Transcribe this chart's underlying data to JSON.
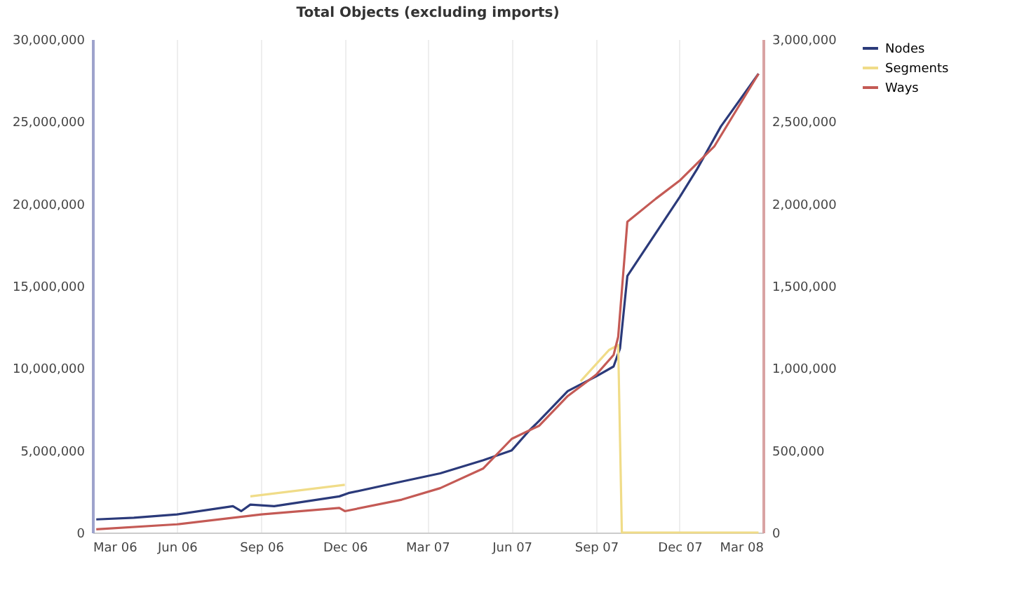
{
  "chart_data": {
    "type": "line",
    "title": "Total Objects (excluding imports)",
    "xlim": [
      "2006-03-01",
      "2008-03-01"
    ],
    "xticks": [
      {
        "value": "2006-03-01",
        "label": "Mar 06"
      },
      {
        "value": "2006-06-01",
        "label": "Jun 06"
      },
      {
        "value": "2006-09-01",
        "label": "Sep 06"
      },
      {
        "value": "2006-12-01",
        "label": "Dec 06"
      },
      {
        "value": "2007-03-01",
        "label": "Mar 07"
      },
      {
        "value": "2007-06-01",
        "label": "Jun 07"
      },
      {
        "value": "2007-09-01",
        "label": "Sep 07"
      },
      {
        "value": "2007-12-01",
        "label": "Dec 07"
      },
      {
        "value": "2008-03-01",
        "label": "Mar 08"
      }
    ],
    "ylim": [
      0,
      30000000
    ],
    "yticks": [
      {
        "value": 0,
        "label": "0"
      },
      {
        "value": 5000000,
        "label": "5,000,000"
      },
      {
        "value": 10000000,
        "label": "10,000,000"
      },
      {
        "value": 15000000,
        "label": "15,000,000"
      },
      {
        "value": 20000000,
        "label": "20,000,000"
      },
      {
        "value": 25000000,
        "label": "25,000,000"
      },
      {
        "value": 30000000,
        "label": "30,000,000"
      }
    ],
    "y2lim": [
      0,
      3000000
    ],
    "y2ticks": [
      {
        "value": 0,
        "label": "0"
      },
      {
        "value": 500000,
        "label": "500,000"
      },
      {
        "value": 1000000,
        "label": "1,000,000"
      },
      {
        "value": 1500000,
        "label": "1,500,000"
      },
      {
        "value": 2000000,
        "label": "2,000,000"
      },
      {
        "value": 2500000,
        "label": "2,500,000"
      },
      {
        "value": 3000000,
        "label": "3,000,000"
      }
    ],
    "grid": "x",
    "legend": "right",
    "line_style": "solid",
    "series": [
      {
        "name": "Nodes",
        "color": "#2b3a7a",
        "x": [
          "2006-03-05",
          "2006-04-15",
          "2006-06-01",
          "2006-08-01",
          "2006-08-10",
          "2006-08-20",
          "2006-09-15",
          "2006-11-25",
          "2006-12-05",
          "2007-02-01",
          "2007-03-15",
          "2007-05-01",
          "2007-06-01",
          "2007-06-20",
          "2007-07-01",
          "2007-08-01",
          "2007-09-01",
          "2007-09-20",
          "2007-09-27",
          "2007-10-05",
          "2007-12-01",
          "2007-12-20",
          "2008-01-15",
          "2008-02-25"
        ],
        "values": [
          800000,
          900000,
          1100000,
          1600000,
          1300000,
          1700000,
          1600000,
          2200000,
          2400000,
          3100000,
          3600000,
          4400000,
          5000000,
          6200000,
          6800000,
          8600000,
          9500000,
          10100000,
          11200000,
          15600000,
          20400000,
          22100000,
          24700000,
          27900000
        ]
      },
      {
        "name": "Segments",
        "color": "#f0dc88",
        "x": [
          "2006-08-20",
          "2006-12-01",
          "2006-12-02",
          "2007-08-15",
          "2007-09-15",
          "2007-09-25",
          "2007-09-29",
          "2008-02-25"
        ],
        "values": [
          2200000,
          2900000,
          null,
          9200000,
          11100000,
          11400000,
          0,
          0
        ]
      },
      {
        "name": "Ways",
        "color": "#c45a55",
        "axis": "y2",
        "x": [
          "2006-03-05",
          "2006-06-01",
          "2006-09-01",
          "2006-11-25",
          "2006-12-01",
          "2007-02-01",
          "2007-03-15",
          "2007-05-01",
          "2007-06-01",
          "2007-07-01",
          "2007-08-01",
          "2007-09-01",
          "2007-09-20",
          "2007-09-25",
          "2007-10-05",
          "2007-11-05",
          "2007-12-01",
          "2008-01-08",
          "2008-02-25"
        ],
        "values": [
          20000,
          50000,
          110000,
          150000,
          130000,
          200000,
          270000,
          390000,
          570000,
          650000,
          830000,
          960000,
          1080000,
          1190000,
          1890000,
          2030000,
          2140000,
          2350000,
          2790000
        ]
      }
    ]
  }
}
